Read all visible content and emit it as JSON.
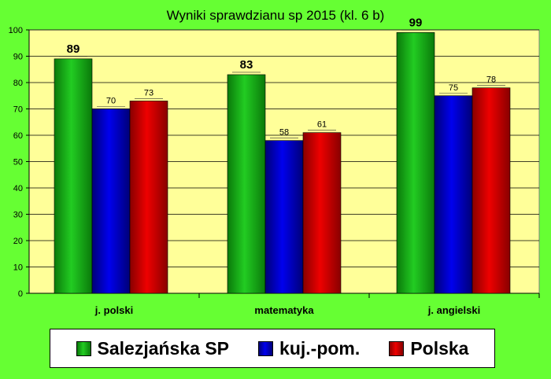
{
  "colors": {
    "background": "#66ff33",
    "plot_area": "#ffff99",
    "series": [
      "#22cc22",
      "#0000ee",
      "#ee0000"
    ],
    "series_dark": [
      "#0a7a0a",
      "#000077",
      "#880000"
    ]
  },
  "chart_data": {
    "type": "bar",
    "title": "Wyniki sprawdzianu sp 2015 (kl. 6 b)",
    "categories": [
      "j. polski",
      "matematyka",
      "j. angielski"
    ],
    "series": [
      {
        "name": "Salezjańska SP",
        "values": [
          89,
          83,
          99
        ]
      },
      {
        "name": "kuj.-pom.",
        "values": [
          70,
          58,
          75
        ]
      },
      {
        "name": "Polska",
        "values": [
          73,
          61,
          78
        ]
      }
    ],
    "ylim": [
      0,
      100
    ],
    "yticks": [
      0,
      10,
      20,
      30,
      40,
      50,
      60,
      70,
      80,
      90,
      100
    ],
    "grid": true,
    "legend": "bottom"
  }
}
